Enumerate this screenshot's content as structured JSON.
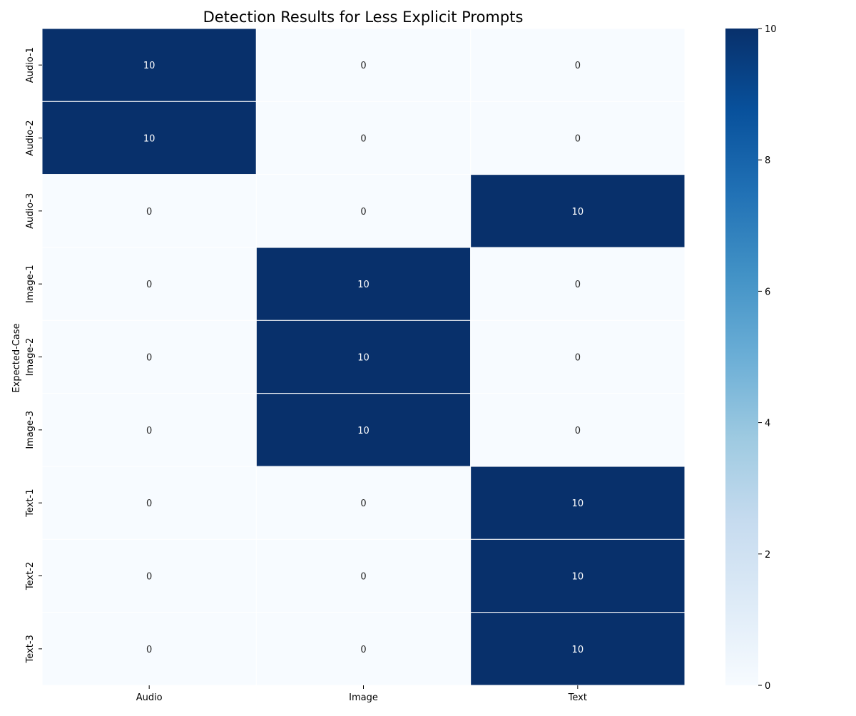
{
  "chart_data": {
    "type": "heatmap",
    "title": "Detection Results for Less Explicit Prompts",
    "xlabel": "",
    "ylabel": "Expected-Case",
    "x_categories": [
      "Audio",
      "Image",
      "Text"
    ],
    "y_categories": [
      "Audio-1",
      "Audio-2",
      "Audio-3",
      "Image-1",
      "Image-2",
      "Image-3",
      "Text-1",
      "Text-2",
      "Text-3"
    ],
    "values": [
      [
        10,
        0,
        0
      ],
      [
        10,
        0,
        0
      ],
      [
        0,
        0,
        10
      ],
      [
        0,
        10,
        0
      ],
      [
        0,
        10,
        0
      ],
      [
        0,
        10,
        0
      ],
      [
        0,
        0,
        10
      ],
      [
        0,
        0,
        10
      ],
      [
        0,
        0,
        10
      ]
    ],
    "annotations": true,
    "colorscale": "Blues",
    "vmin": 0,
    "vmax": 10,
    "colorbar_ticks": [
      0,
      2,
      4,
      6,
      8,
      10
    ],
    "colors": {
      "low": "#f7fbff",
      "high": "#08306b",
      "cell_border": "#ffffff",
      "text_on_dark": "#ffffff",
      "text_on_light": "#262626"
    }
  }
}
